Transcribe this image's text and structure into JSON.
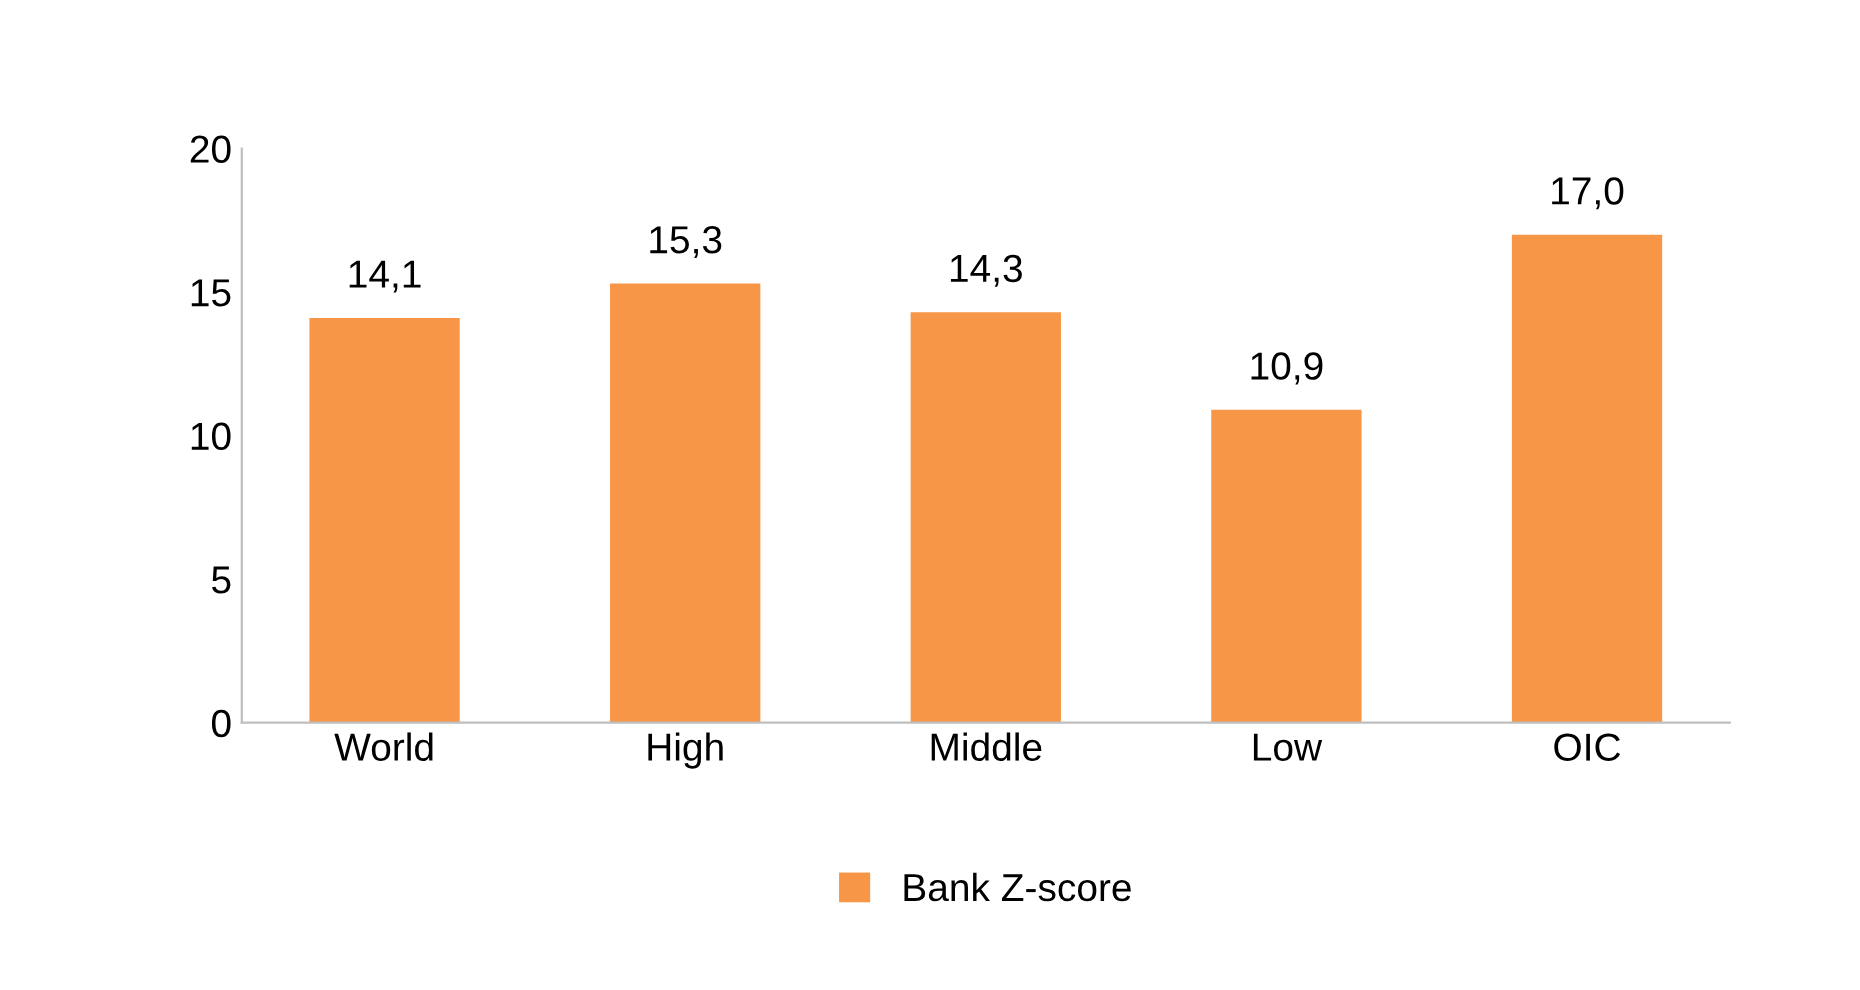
{
  "chart_data": {
    "type": "bar",
    "categories": [
      "World",
      "High",
      "Middle",
      "Low",
      "OIC"
    ],
    "series": [
      {
        "name": "Bank Z-score",
        "color": "#f79646",
        "values": [
          14.1,
          15.3,
          14.3,
          10.9,
          17.0
        ],
        "value_labels": [
          "14,1",
          "15,3",
          "14,3",
          "10,9",
          "17,0"
        ]
      }
    ],
    "ylim": [
      0,
      20
    ],
    "yticks": [
      0,
      5,
      10,
      15,
      20
    ],
    "grid": false,
    "legend": "bottom"
  }
}
